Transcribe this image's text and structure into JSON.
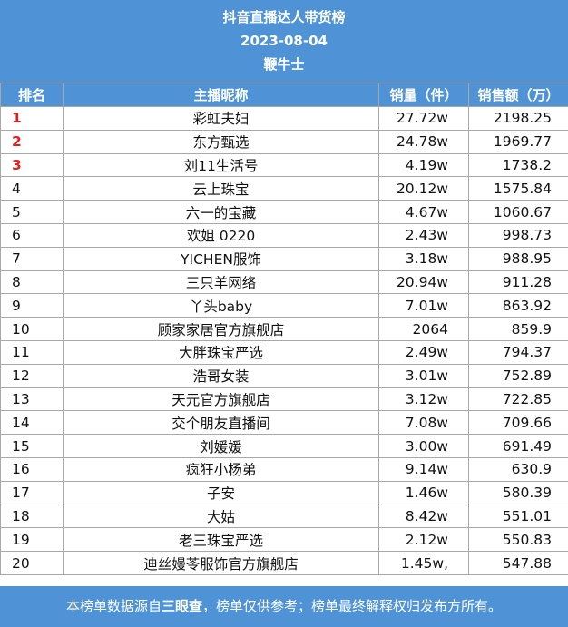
{
  "header": {
    "title": "抖音直播达人带货榜",
    "date": "2023-08-04",
    "brand": "鞭牛士"
  },
  "columns": {
    "rank": "排名",
    "name": "主播昵称",
    "sales": "销量（件）",
    "amount": "销售额（万）"
  },
  "rows": [
    {
      "rank": "1",
      "name": "彩虹夫妇",
      "sales": "27.72w",
      "amount": "2198.25"
    },
    {
      "rank": "2",
      "name": "东方甄选",
      "sales": "24.78w",
      "amount": "1969.77"
    },
    {
      "rank": "3",
      "name": "刘11生活号",
      "sales": "4.19w",
      "amount": "1738.2"
    },
    {
      "rank": "4",
      "name": "云上珠宝",
      "sales": "20.12w",
      "amount": "1575.84"
    },
    {
      "rank": "5",
      "name": "六一的宝藏",
      "sales": "4.67w",
      "amount": "1060.67"
    },
    {
      "rank": "6",
      "name": "欢姐 0220",
      "sales": "2.43w",
      "amount": "998.73"
    },
    {
      "rank": "7",
      "name": "YICHEN服饰",
      "sales": "3.18w",
      "amount": "988.95"
    },
    {
      "rank": "8",
      "name": "三只羊网络",
      "sales": "20.94w",
      "amount": "911.28"
    },
    {
      "rank": "9",
      "name": "丫头baby",
      "sales": "7.01w",
      "amount": "863.92"
    },
    {
      "rank": "10",
      "name": "顾家家居官方旗舰店",
      "sales": "2064",
      "amount": "859.9"
    },
    {
      "rank": "11",
      "name": "大胖珠宝严选",
      "sales": "2.49w",
      "amount": "794.37"
    },
    {
      "rank": "12",
      "name": "浩哥女装",
      "sales": "3.01w",
      "amount": "752.89"
    },
    {
      "rank": "13",
      "name": "天元官方旗舰店",
      "sales": "3.12w",
      "amount": "722.85"
    },
    {
      "rank": "14",
      "name": "交个朋友直播间",
      "sales": "7.08w",
      "amount": "709.66"
    },
    {
      "rank": "15",
      "name": "刘媛媛",
      "sales": "3.00w",
      "amount": "691.49"
    },
    {
      "rank": "16",
      "name": "疯狂小杨弟",
      "sales": "9.14w",
      "amount": "630.9"
    },
    {
      "rank": "17",
      "name": "子安",
      "sales": "1.46w",
      "amount": "580.39"
    },
    {
      "rank": "18",
      "name": "大姑",
      "sales": "8.42w",
      "amount": "551.01"
    },
    {
      "rank": "19",
      "name": "老三珠宝严选",
      "sales": "2.12w",
      "amount": "550.83"
    },
    {
      "rank": "20",
      "name": "迪丝嫚苓服饰官方旗舰店",
      "sales": "1.45w,",
      "amount": "547.88"
    }
  ],
  "footer": {
    "prefix": "本榜单数据源自",
    "source": "三眼查",
    "suffix": "，榜单仅供参考；榜单最终解释权归发布方所有。"
  },
  "colors": {
    "header_bg": "#4f93d6",
    "top3_rank": "#e0201c"
  }
}
